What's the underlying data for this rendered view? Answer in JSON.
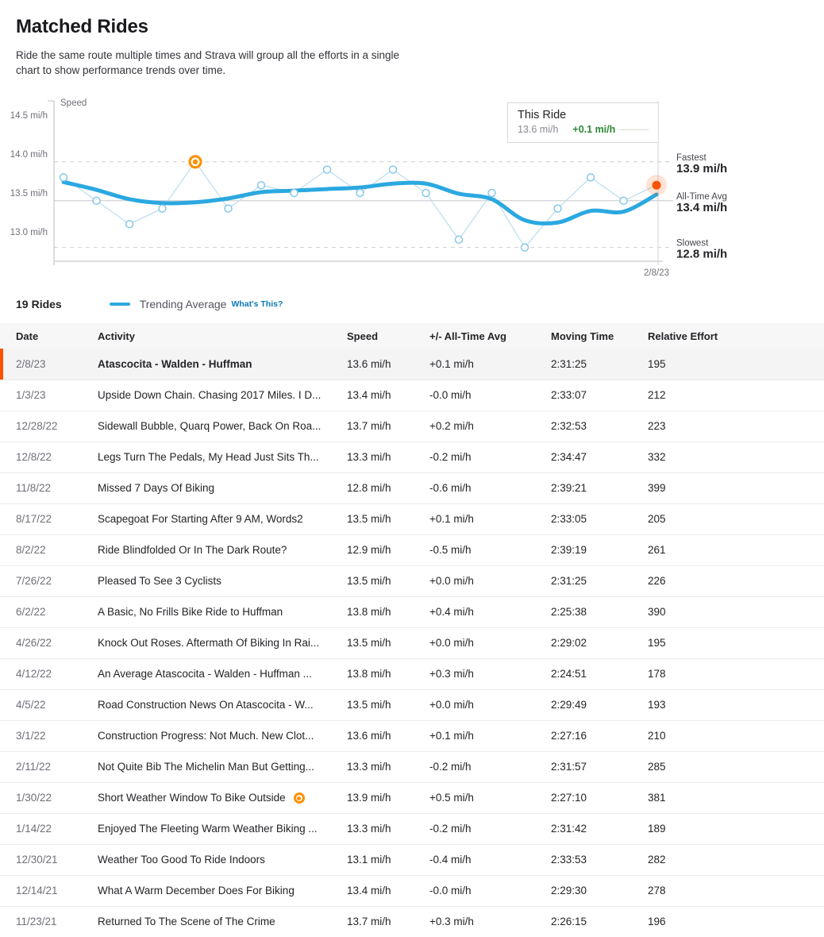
{
  "header": {
    "title": "Matched Rides",
    "description": "Ride the same route multiple times and Strava will group all the efforts in a single chart to show performance trends over time."
  },
  "chart_data": {
    "type": "line",
    "ylabel": "Speed",
    "yticks": [
      {
        "label": "14.5 mi/h",
        "value": 14.5
      },
      {
        "label": "14.0 mi/h",
        "value": 14.0
      },
      {
        "label": "13.5 mi/h",
        "value": 13.5
      },
      {
        "label": "13.0 mi/h",
        "value": 13.0
      }
    ],
    "x": [
      "11/23/21",
      "12/14/21",
      "12/30/21",
      "1/14/22",
      "1/30/22",
      "2/11/22",
      "3/1/22",
      "4/5/22",
      "4/12/22",
      "4/26/22",
      "6/2/22",
      "7/26/22",
      "8/2/22",
      "8/17/22",
      "11/8/22",
      "12/8/22",
      "12/28/22",
      "1/3/23",
      "2/8/23"
    ],
    "x_axis_label": "2/8/23",
    "series": [
      {
        "name": "Rides",
        "values": [
          13.7,
          13.4,
          13.1,
          13.3,
          13.9,
          13.3,
          13.6,
          13.5,
          13.8,
          13.5,
          13.8,
          13.5,
          12.9,
          13.5,
          12.8,
          13.3,
          13.7,
          13.4,
          13.6
        ]
      },
      {
        "name": "Trending Average",
        "values": [
          13.64,
          13.54,
          13.42,
          13.37,
          13.38,
          13.43,
          13.51,
          13.53,
          13.55,
          13.57,
          13.62,
          13.62,
          13.49,
          13.42,
          13.15,
          13.12,
          13.27,
          13.26,
          13.48
        ]
      }
    ],
    "highlight_index": 4,
    "current_index": 18,
    "reference_lines": [
      {
        "label": "Fastest",
        "value_label": "13.9 mi/h",
        "value": 13.9,
        "style": "dashed"
      },
      {
        "label": "All-Time Avg",
        "value_label": "13.4 mi/h",
        "value": 13.4,
        "style": "solid"
      },
      {
        "label": "Slowest",
        "value_label": "12.8 mi/h",
        "value": 12.8,
        "style": "dashed"
      }
    ],
    "tooltip": {
      "title": "This Ride",
      "speed": "13.6 mi/h",
      "delta": "+0.1 mi/h"
    },
    "ylim": [
      12.6,
      14.7
    ],
    "legend_position": "bottom-left",
    "grid": "horizontal-only",
    "colors": {
      "trend": "#2ba8e0",
      "series_line": "#b9ddf0",
      "point_stroke": "#86c8ea",
      "highlight": "#ff9100",
      "current": "#fc5200",
      "green": "#2a8735",
      "axis": "#bcbcc2",
      "grid": "#cfcfd4",
      "tick_text": "#6f6f78"
    }
  },
  "legend": {
    "count": "19",
    "count_label": "Rides",
    "trend_label": "Trending Average",
    "whats_this": "What's This?"
  },
  "table": {
    "columns": [
      "Date",
      "Activity",
      "Speed",
      "+/- All-Time Avg",
      "Moving Time",
      "Relative Effort"
    ],
    "rows": [
      {
        "date": "2/8/23",
        "activity": "Atascocita - Walden - Huffman",
        "speed": "13.6 mi/h",
        "delta": "+0.1 mi/h",
        "time": "2:31:25",
        "effort": "195",
        "selected": true,
        "marked": false
      },
      {
        "date": "1/3/23",
        "activity": "Upside Down Chain. Chasing 2017 Miles. I D...",
        "speed": "13.4 mi/h",
        "delta": "-0.0 mi/h",
        "time": "2:33:07",
        "effort": "212",
        "selected": false,
        "marked": false
      },
      {
        "date": "12/28/22",
        "activity": "Sidewall Bubble, Quarq Power, Back On Roa...",
        "speed": "13.7 mi/h",
        "delta": "+0.2 mi/h",
        "time": "2:32:53",
        "effort": "223",
        "selected": false,
        "marked": false
      },
      {
        "date": "12/8/22",
        "activity": "Legs Turn The Pedals, My Head Just Sits Th...",
        "speed": "13.3 mi/h",
        "delta": "-0.2 mi/h",
        "time": "2:34:47",
        "effort": "332",
        "selected": false,
        "marked": false
      },
      {
        "date": "11/8/22",
        "activity": "Missed 7 Days Of Biking",
        "speed": "12.8 mi/h",
        "delta": "-0.6 mi/h",
        "time": "2:39:21",
        "effort": "399",
        "selected": false,
        "marked": false
      },
      {
        "date": "8/17/22",
        "activity": "Scapegoat For Starting After 9 AM, Words2",
        "speed": "13.5 mi/h",
        "delta": "+0.1 mi/h",
        "time": "2:33:05",
        "effort": "205",
        "selected": false,
        "marked": false
      },
      {
        "date": "8/2/22",
        "activity": "Ride Blindfolded Or In The Dark Route?",
        "speed": "12.9 mi/h",
        "delta": "-0.5 mi/h",
        "time": "2:39:19",
        "effort": "261",
        "selected": false,
        "marked": false
      },
      {
        "date": "7/26/22",
        "activity": "Pleased To See 3 Cyclists",
        "speed": "13.5 mi/h",
        "delta": "+0.0 mi/h",
        "time": "2:31:25",
        "effort": "226",
        "selected": false,
        "marked": false
      },
      {
        "date": "6/2/22",
        "activity": "A Basic, No Frills Bike Ride to Huffman",
        "speed": "13.8 mi/h",
        "delta": "+0.4 mi/h",
        "time": "2:25:38",
        "effort": "390",
        "selected": false,
        "marked": false
      },
      {
        "date": "4/26/22",
        "activity": "Knock Out Roses. Aftermath Of Biking In Rai...",
        "speed": "13.5 mi/h",
        "delta": "+0.0 mi/h",
        "time": "2:29:02",
        "effort": "195",
        "selected": false,
        "marked": false
      },
      {
        "date": "4/12/22",
        "activity": "An Average Atascocita - Walden - Huffman ...",
        "speed": "13.8 mi/h",
        "delta": "+0.3 mi/h",
        "time": "2:24:51",
        "effort": "178",
        "selected": false,
        "marked": false
      },
      {
        "date": "4/5/22",
        "activity": "Road Construction News On Atascocita - W...",
        "speed": "13.5 mi/h",
        "delta": "+0.0 mi/h",
        "time": "2:29:49",
        "effort": "193",
        "selected": false,
        "marked": false
      },
      {
        "date": "3/1/22",
        "activity": "Construction Progress: Not Much. New Clot...",
        "speed": "13.6 mi/h",
        "delta": "+0.1 mi/h",
        "time": "2:27:16",
        "effort": "210",
        "selected": false,
        "marked": false
      },
      {
        "date": "2/11/22",
        "activity": "Not Quite Bib The Michelin Man But Getting...",
        "speed": "13.3 mi/h",
        "delta": "-0.2 mi/h",
        "time": "2:31:57",
        "effort": "285",
        "selected": false,
        "marked": false
      },
      {
        "date": "1/30/22",
        "activity": "Short Weather Window To Bike Outside",
        "speed": "13.9 mi/h",
        "delta": "+0.5 mi/h",
        "time": "2:27:10",
        "effort": "381",
        "selected": false,
        "marked": true
      },
      {
        "date": "1/14/22",
        "activity": "Enjoyed The Fleeting Warm Weather Biking ...",
        "speed": "13.3 mi/h",
        "delta": "-0.2 mi/h",
        "time": "2:31:42",
        "effort": "189",
        "selected": false,
        "marked": false
      },
      {
        "date": "12/30/21",
        "activity": "Weather Too Good To Ride Indoors",
        "speed": "13.1 mi/h",
        "delta": "-0.4 mi/h",
        "time": "2:33:53",
        "effort": "282",
        "selected": false,
        "marked": false
      },
      {
        "date": "12/14/21",
        "activity": "What A Warm December Does For Biking",
        "speed": "13.4 mi/h",
        "delta": "-0.0 mi/h",
        "time": "2:29:30",
        "effort": "278",
        "selected": false,
        "marked": false
      },
      {
        "date": "11/23/21",
        "activity": "Returned To The Scene of The Crime",
        "speed": "13.7 mi/h",
        "delta": "+0.3 mi/h",
        "time": "2:26:15",
        "effort": "196",
        "selected": false,
        "marked": false
      }
    ]
  }
}
